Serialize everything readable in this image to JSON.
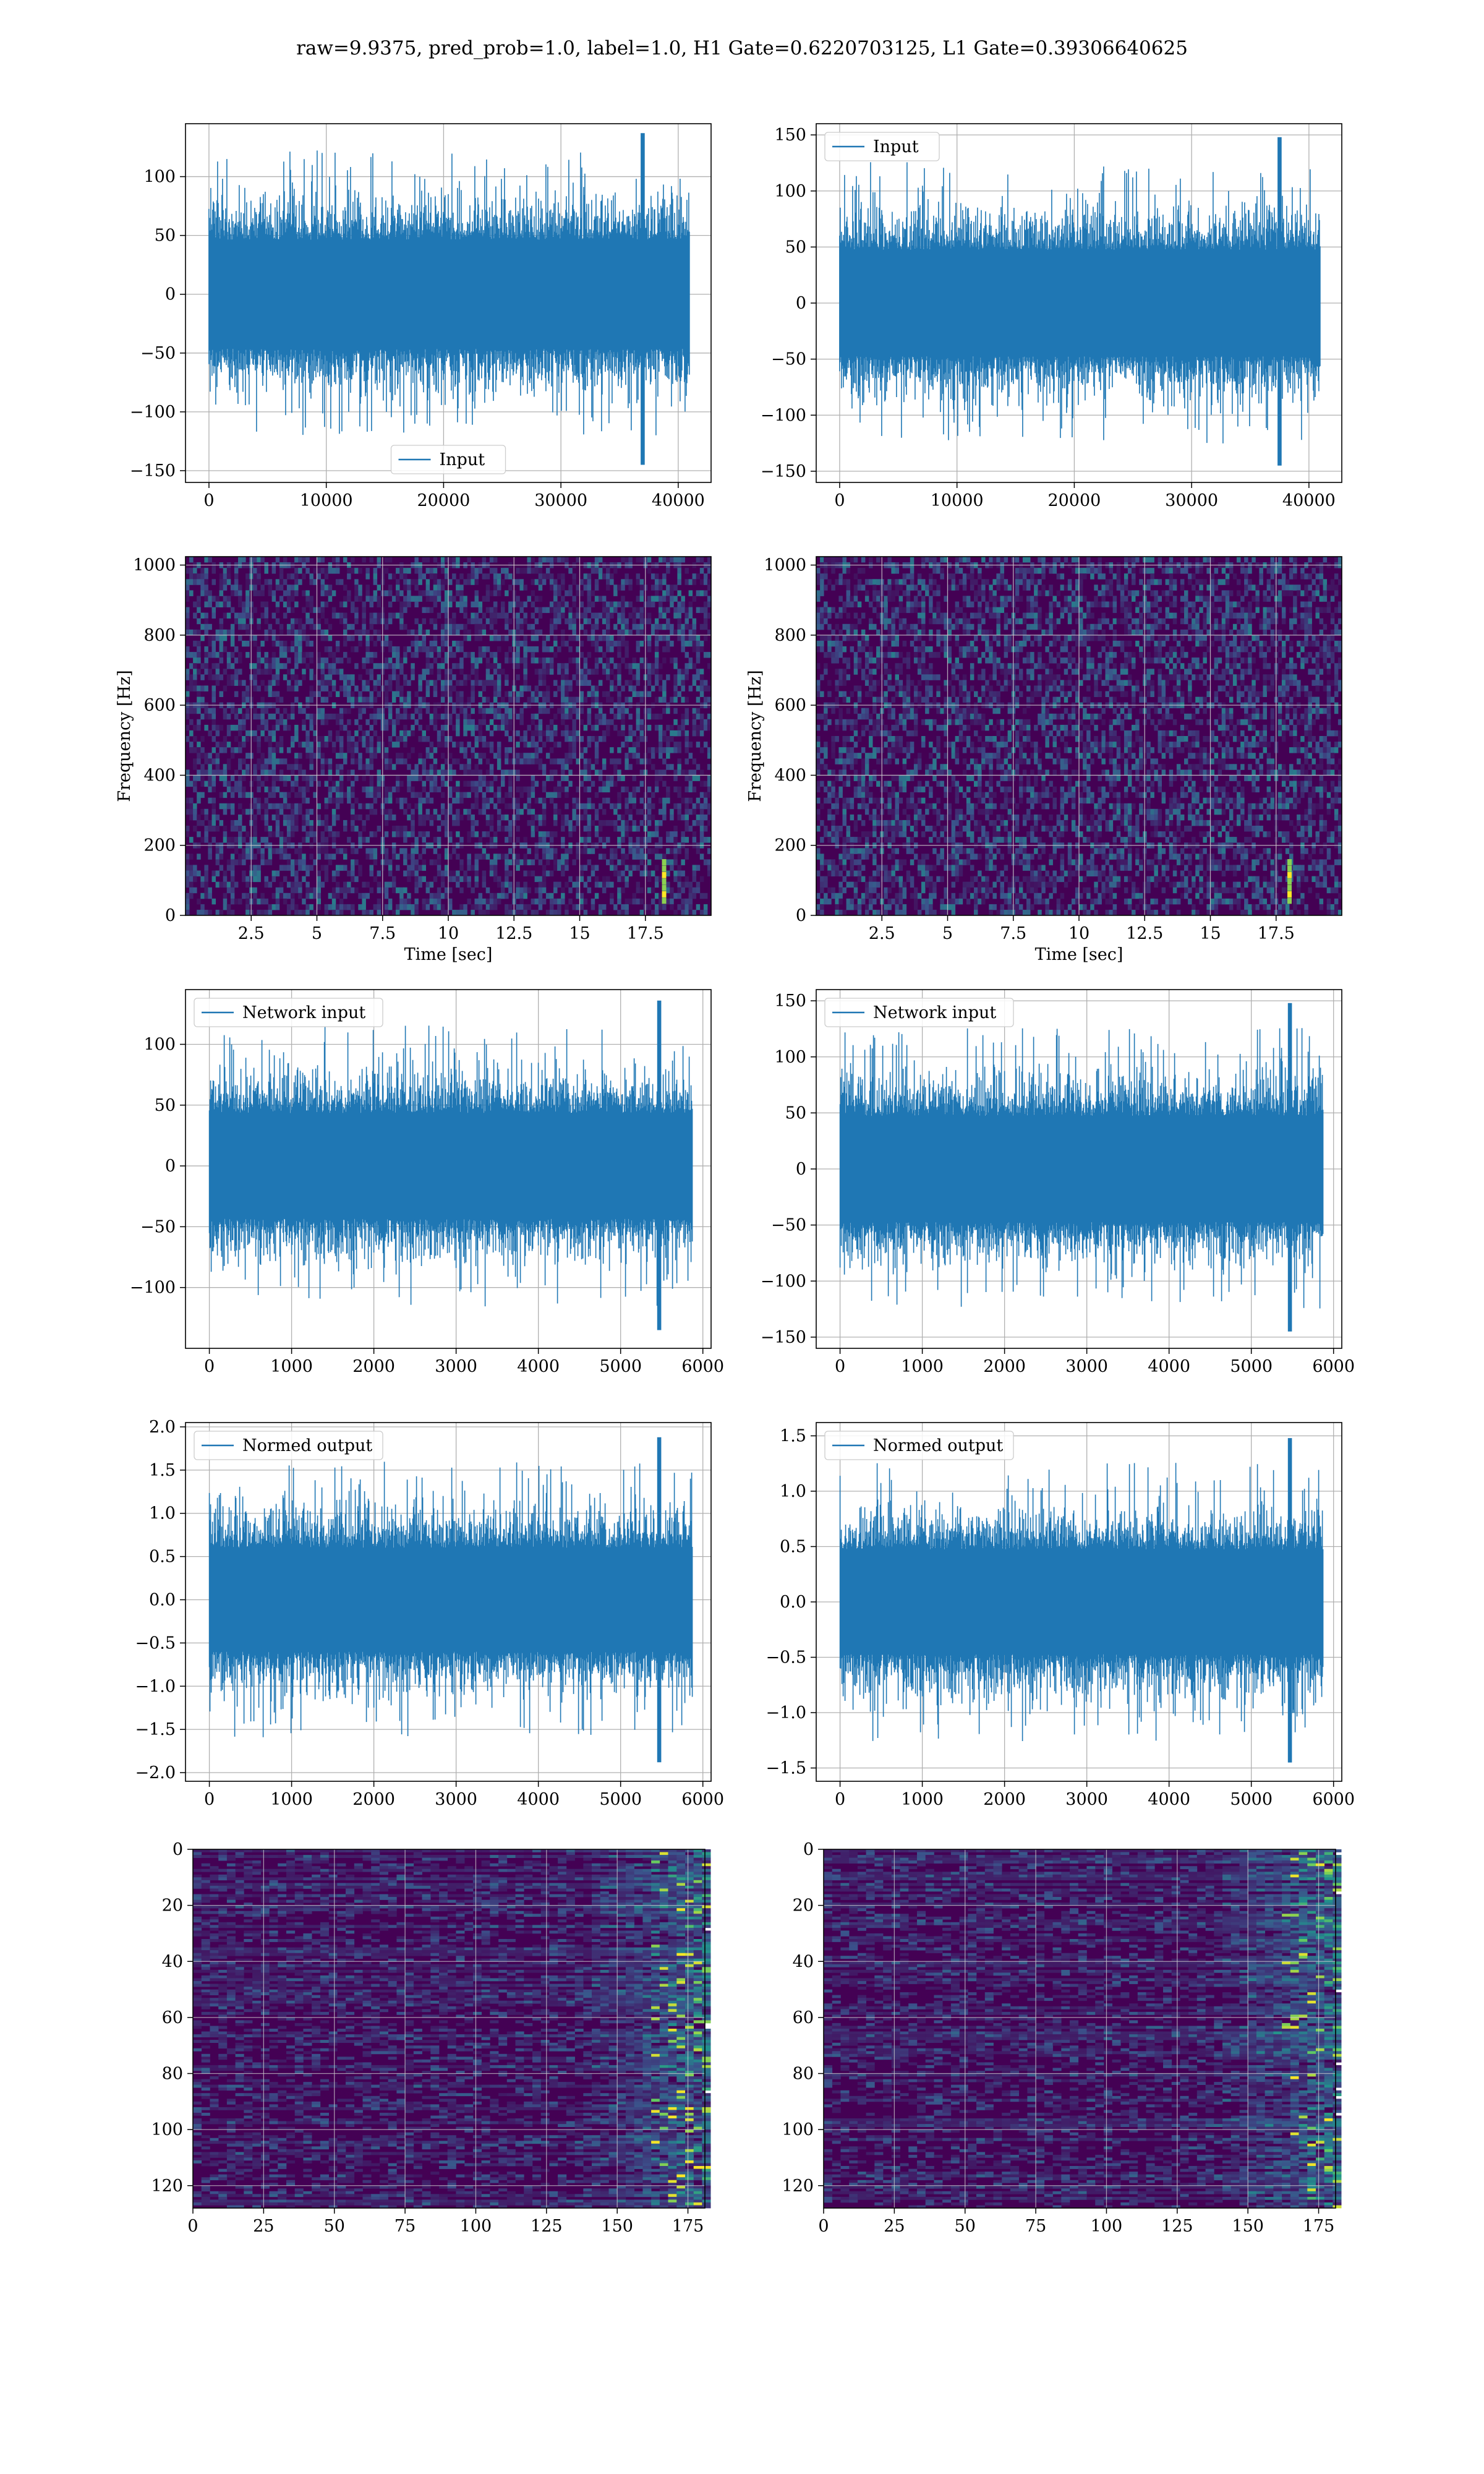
{
  "title": "raw=9.9375, pred_prob=1.0, label=1.0, H1 Gate=0.6220703125, L1 Gate=0.39306640625",
  "colors": {
    "series": "#1f77b4",
    "grid": "#b0b0b0",
    "spectro_bg": "#440154"
  },
  "chart_data": [
    {
      "id": "h1_input",
      "type": "line",
      "legend": "Input",
      "legend_loc": "lower center",
      "xlim": [
        -2000,
        42800
      ],
      "ylim": [
        -160,
        145
      ],
      "xticks": [
        0,
        10000,
        20000,
        30000,
        40000
      ],
      "yticks": [
        -150,
        -100,
        -50,
        0,
        50,
        100
      ],
      "n_samples": 40960,
      "envelope_min": -145,
      "envelope_max": 137,
      "peak_x": 37000,
      "grid": true
    },
    {
      "id": "l1_input",
      "type": "line",
      "legend": "Input",
      "legend_loc": "upper left",
      "xlim": [
        -2000,
        42800
      ],
      "ylim": [
        -160,
        160
      ],
      "xticks": [
        0,
        10000,
        20000,
        30000,
        40000
      ],
      "yticks": [
        -150,
        -100,
        -50,
        0,
        50,
        100,
        150
      ],
      "n_samples": 40960,
      "envelope_min": -145,
      "envelope_max": 148,
      "peak_x": 37500,
      "grid": true
    },
    {
      "id": "h1_spectrogram",
      "type": "heatmap",
      "xlabel": "Time [sec]",
      "ylabel": "Frequency [Hz]",
      "xlim": [
        0,
        20
      ],
      "ylim": [
        0,
        1024
      ],
      "xticks": [
        2.5,
        5.0,
        7.5,
        10.0,
        12.5,
        15.0,
        17.5
      ],
      "yticks": [
        0,
        200,
        400,
        600,
        800,
        1000
      ],
      "event_time": 18.2,
      "event_freq": [
        40,
        150
      ],
      "grid": true
    },
    {
      "id": "l1_spectrogram",
      "type": "heatmap",
      "xlabel": "Time [sec]",
      "ylabel": "Frequency [Hz]",
      "xlim": [
        0,
        20
      ],
      "ylim": [
        0,
        1024
      ],
      "xticks": [
        2.5,
        5.0,
        7.5,
        10.0,
        12.5,
        15.0,
        17.5
      ],
      "yticks": [
        0,
        200,
        400,
        600,
        800,
        1000
      ],
      "event_time": 18.0,
      "event_freq": [
        40,
        150
      ],
      "grid": true
    },
    {
      "id": "h1_network_input",
      "type": "line",
      "legend": "Network input",
      "legend_loc": "upper left",
      "xlim": [
        -290,
        6100
      ],
      "ylim": [
        -150,
        145
      ],
      "xticks": [
        0,
        1000,
        2000,
        3000,
        4000,
        5000,
        6000
      ],
      "yticks": [
        -100,
        -50,
        0,
        50,
        100
      ],
      "n_samples": 5870,
      "envelope_min": -135,
      "envelope_max": 136,
      "peak_x": 5470,
      "grid": true
    },
    {
      "id": "l1_network_input",
      "type": "line",
      "legend": "Network input",
      "legend_loc": "upper left",
      "xlim": [
        -290,
        6100
      ],
      "ylim": [
        -160,
        160
      ],
      "xticks": [
        0,
        1000,
        2000,
        3000,
        4000,
        5000,
        6000
      ],
      "yticks": [
        -150,
        -100,
        -50,
        0,
        50,
        100,
        150
      ],
      "n_samples": 5870,
      "envelope_min": -145,
      "envelope_max": 148,
      "peak_x": 5470,
      "grid": true
    },
    {
      "id": "h1_normed_output",
      "type": "line",
      "legend": "Normed output",
      "legend_loc": "upper left",
      "xlim": [
        -290,
        6100
      ],
      "ylim": [
        -2.1,
        2.05
      ],
      "xticks": [
        0,
        1000,
        2000,
        3000,
        4000,
        5000,
        6000
      ],
      "yticks": [
        -2.0,
        -1.5,
        -1.0,
        -0.5,
        0.0,
        0.5,
        1.0,
        1.5,
        2.0
      ],
      "n_samples": 5870,
      "envelope_min": -1.88,
      "envelope_max": 1.88,
      "peak_x": 5470,
      "grid": true
    },
    {
      "id": "l1_normed_output",
      "type": "line",
      "legend": "Normed output",
      "legend_loc": "upper left",
      "xlim": [
        -290,
        6100
      ],
      "ylim": [
        -1.62,
        1.62
      ],
      "xticks": [
        0,
        1000,
        2000,
        3000,
        4000,
        5000,
        6000
      ],
      "yticks": [
        -1.5,
        -1.0,
        -0.5,
        0.0,
        0.5,
        1.0,
        1.5
      ],
      "n_samples": 5870,
      "envelope_min": -1.45,
      "envelope_max": 1.48,
      "peak_x": 5470,
      "grid": true
    },
    {
      "id": "h1_feature_map",
      "type": "heatmap",
      "xlim": [
        0,
        181
      ],
      "ylim": [
        128,
        0
      ],
      "xticks": [
        0,
        25,
        50,
        75,
        100,
        125,
        150,
        175
      ],
      "yticks": [
        0,
        20,
        40,
        60,
        80,
        100,
        120
      ],
      "rows": 128,
      "cols": 181,
      "grid": true
    },
    {
      "id": "l1_feature_map",
      "type": "heatmap",
      "xlim": [
        0,
        181
      ],
      "ylim": [
        128,
        0
      ],
      "xticks": [
        0,
        25,
        50,
        75,
        100,
        125,
        150,
        175
      ],
      "yticks": [
        0,
        20,
        40,
        60,
        80,
        100,
        120
      ],
      "rows": 128,
      "cols": 181,
      "grid": true
    }
  ]
}
